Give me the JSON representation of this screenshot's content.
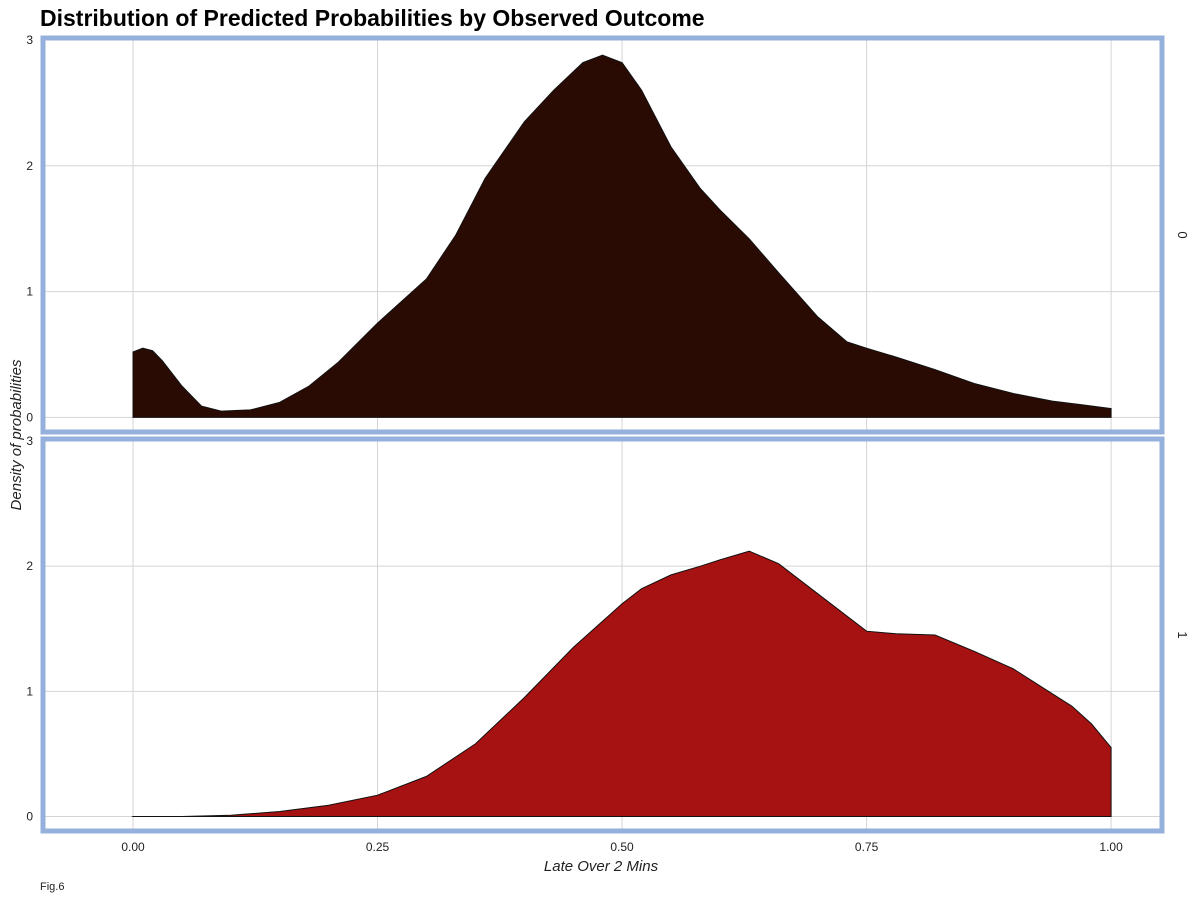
{
  "chart_data": {
    "type": "area",
    "title": "Distribution of Predicted Probabilities by Observed Outcome",
    "xlabel": "Late Over 2 Mins",
    "ylabel": "Density of probabilities",
    "caption": "Fig.6",
    "xlim": [
      -0.09,
      1.05
    ],
    "ylim": [
      -0.1,
      3.0
    ],
    "x_ticks": [
      0,
      0.25,
      0.5,
      0.75,
      1.0
    ],
    "x_tick_labels": [
      "0.00",
      "0.25",
      "0.50",
      "0.75",
      "1.00"
    ],
    "y_ticks": [
      0,
      1,
      2,
      3
    ],
    "y_tick_labels": [
      "0",
      "1",
      "2",
      "3"
    ],
    "grid": true,
    "facet_border_color": "#95b0dc",
    "panels": [
      {
        "strip_label": "0",
        "fill_color": "#290b04",
        "x": [
          0.0,
          0.01,
          0.02,
          0.03,
          0.05,
          0.07,
          0.09,
          0.12,
          0.15,
          0.18,
          0.21,
          0.25,
          0.3,
          0.33,
          0.36,
          0.4,
          0.43,
          0.46,
          0.48,
          0.5,
          0.52,
          0.55,
          0.58,
          0.6,
          0.63,
          0.66,
          0.7,
          0.73,
          0.75,
          0.78,
          0.82,
          0.86,
          0.9,
          0.94,
          0.97,
          1.0
        ],
        "y": [
          0.52,
          0.55,
          0.53,
          0.45,
          0.25,
          0.09,
          0.05,
          0.06,
          0.12,
          0.25,
          0.44,
          0.75,
          1.1,
          1.45,
          1.9,
          2.35,
          2.6,
          2.82,
          2.88,
          2.82,
          2.6,
          2.15,
          1.82,
          1.65,
          1.42,
          1.15,
          0.8,
          0.6,
          0.55,
          0.48,
          0.38,
          0.27,
          0.19,
          0.13,
          0.1,
          0.07
        ]
      },
      {
        "strip_label": "1",
        "fill_color": "#a61111",
        "x": [
          0.0,
          0.05,
          0.1,
          0.15,
          0.2,
          0.25,
          0.3,
          0.35,
          0.4,
          0.45,
          0.5,
          0.52,
          0.55,
          0.58,
          0.6,
          0.63,
          0.66,
          0.7,
          0.75,
          0.78,
          0.82,
          0.86,
          0.9,
          0.93,
          0.96,
          0.98,
          1.0
        ],
        "y": [
          0.0,
          0.0,
          0.01,
          0.04,
          0.09,
          0.17,
          0.32,
          0.58,
          0.95,
          1.35,
          1.7,
          1.82,
          1.93,
          2.0,
          2.05,
          2.12,
          2.02,
          1.78,
          1.48,
          1.46,
          1.45,
          1.32,
          1.18,
          1.03,
          0.88,
          0.74,
          0.55
        ]
      }
    ]
  }
}
